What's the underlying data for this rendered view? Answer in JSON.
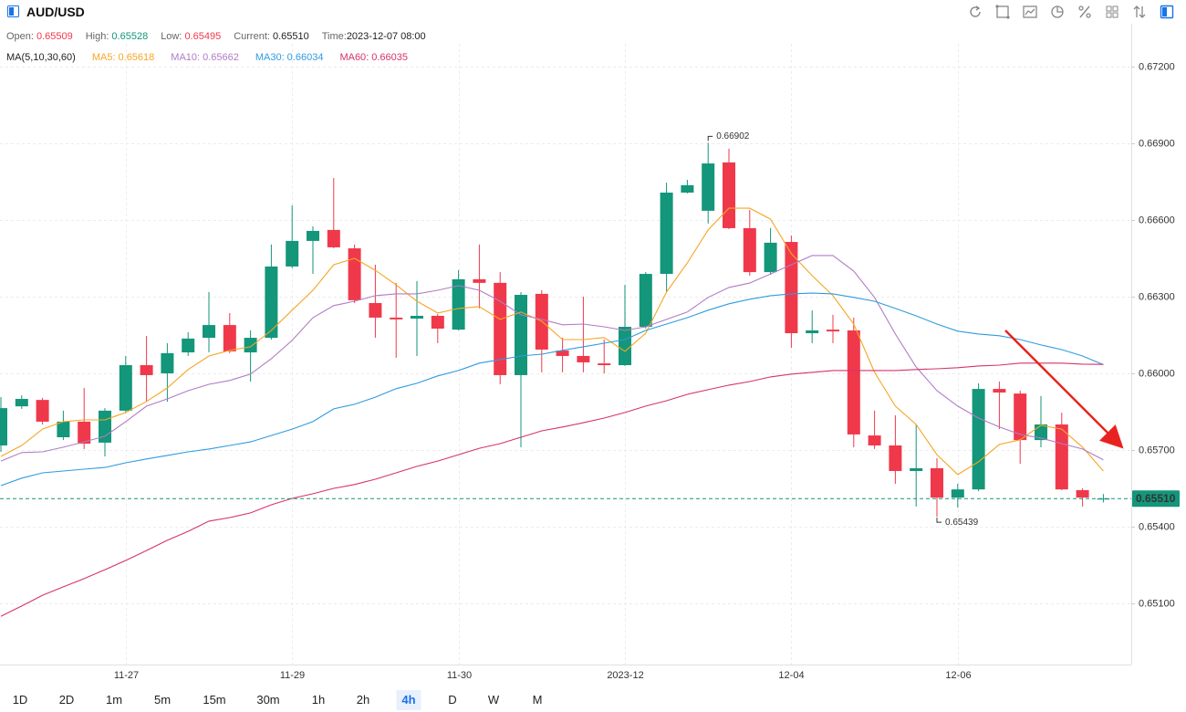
{
  "header": {
    "symbol": "AUD/USD"
  },
  "info": [
    "Open:",
    "High:",
    "Low:",
    "Current:",
    "Time:"
  ],
  "time": "2023-12-07 08:00",
  "indicator": "MA(5,10,30,60)",
  "timeframes": [
    "1D",
    "2D",
    "1m",
    "5m",
    "15m",
    "30m",
    "1h",
    "2h",
    "4h",
    "D",
    "W",
    "M"
  ],
  "active_timeframe": "4h",
  "chart_data": {
    "type": "candlestick",
    "categories": [
      null,
      null,
      null,
      null,
      null,
      null,
      "11-27",
      null,
      null,
      null,
      null,
      null,
      null,
      null,
      "11-29",
      null,
      null,
      null,
      null,
      null,
      null,
      null,
      "11-30",
      null,
      null,
      null,
      null,
      null,
      null,
      null,
      "2023-12",
      null,
      null,
      null,
      null,
      null,
      null,
      null,
      "12-04",
      null,
      null,
      null,
      null,
      null,
      null,
      null,
      "12-06",
      null,
      null,
      null,
      null,
      null,
      null,
      null
    ],
    "open": [
      0.65718,
      0.65871,
      0.65896,
      0.6575,
      0.65811,
      0.65729,
      0.65854,
      0.66032,
      0.66,
      0.66082,
      0.66139,
      0.66189,
      0.66082,
      0.66139,
      0.66418,
      0.66518,
      0.66561,
      0.66489,
      0.66275,
      0.66218,
      0.66214,
      0.66225,
      0.66171,
      0.66368,
      0.66354,
      0.65993,
      0.66311,
      0.66089,
      0.66068,
      0.66039,
      0.66032,
      0.66182,
      0.66389,
      0.66707,
      0.66636,
      0.66825,
      0.66568,
      0.66396,
      0.66514,
      0.66157,
      0.66171,
      0.66168,
      0.65757,
      0.65718,
      0.65618,
      0.65629,
      0.65514,
      0.65546,
      0.65939,
      0.65921,
      0.65739,
      0.658,
      0.65543,
      0.65509
    ],
    "high": [
      0.65907,
      0.65914,
      0.65904,
      0.65854,
      0.65943,
      0.65864,
      0.66068,
      0.66146,
      0.66118,
      0.66161,
      0.66318,
      0.66236,
      0.66168,
      0.66504,
      0.66657,
      0.66575,
      0.66764,
      0.66504,
      0.66425,
      0.66354,
      0.66361,
      0.66232,
      0.66404,
      0.66504,
      0.66396,
      0.66318,
      0.66325,
      0.66139,
      0.663,
      0.66132,
      0.66346,
      0.66396,
      0.66746,
      0.66757,
      0.66902,
      0.66879,
      0.66639,
      0.66568,
      0.66539,
      0.66246,
      0.66229,
      0.66218,
      0.65854,
      0.65836,
      0.658,
      0.65668,
      0.65568,
      0.65961,
      0.65968,
      0.65932,
      0.65911,
      0.65846,
      0.6555,
      0.65528
    ],
    "low": [
      0.65693,
      0.65861,
      0.658,
      0.65739,
      0.65704,
      0.65675,
      0.65846,
      0.65889,
      0.65889,
      0.66068,
      0.66082,
      0.66079,
      0.65968,
      0.66132,
      0.66411,
      0.66389,
      0.66489,
      0.66275,
      0.66139,
      0.66061,
      0.66068,
      0.66118,
      0.66168,
      0.66254,
      0.65957,
      0.65711,
      0.66004,
      0.66004,
      0.66004,
      0.66,
      0.66029,
      0.66175,
      0.66318,
      0.66704,
      0.66586,
      0.66564,
      0.66382,
      0.66386,
      0.661,
      0.66118,
      0.66118,
      0.65711,
      0.65704,
      0.65568,
      0.65479,
      0.65439,
      0.65475,
      0.65539,
      0.65782,
      0.65646,
      0.65711,
      0.65543,
      0.65479,
      0.65495
    ],
    "close": [
      0.65864,
      0.659,
      0.65811,
      0.65811,
      0.65725,
      0.65854,
      0.66032,
      0.65993,
      0.66079,
      0.66136,
      0.66189,
      0.66086,
      0.66139,
      0.66418,
      0.66518,
      0.66557,
      0.66493,
      0.66286,
      0.66218,
      0.66211,
      0.66225,
      0.66175,
      0.66368,
      0.66354,
      0.65993,
      0.66307,
      0.66093,
      0.66068,
      0.66043,
      0.66032,
      0.66182,
      0.66389,
      0.66707,
      0.66736,
      0.66821,
      0.66568,
      0.66396,
      0.66511,
      0.66157,
      0.66168,
      0.66164,
      0.65761,
      0.65718,
      0.65618,
      0.65629,
      0.65514,
      0.65546,
      0.65939,
      0.65925,
      0.65739,
      0.658,
      0.65546,
      0.65514,
      0.6551
    ],
    "current_label": "0.65510",
    "up_color": "#13967a",
    "down_color": "#f0384b",
    "series": [
      {
        "name": "MA5",
        "color": "#f5a623",
        "values": [
          0.65675,
          0.65718,
          0.65782,
          0.65811,
          0.65818,
          0.65818,
          0.65847,
          0.6589,
          0.65943,
          0.66015,
          0.66068,
          0.6609,
          0.66104,
          0.66168,
          0.66247,
          0.66325,
          0.66425,
          0.6645,
          0.66403,
          0.66346,
          0.66282,
          0.66236,
          0.66254,
          0.66261,
          0.66211,
          0.6624,
          0.66204,
          0.66132,
          0.66132,
          0.6614,
          0.66086,
          0.66157,
          0.66318,
          0.66432,
          0.66561,
          0.66646,
          0.66646,
          0.66603,
          0.66468,
          0.66382,
          0.66304,
          0.66193,
          0.66004,
          0.65872,
          0.658,
          0.65682,
          0.65604,
          0.65654,
          0.65722,
          0.6574,
          0.65797,
          0.65782,
          0.65711,
          0.65618
        ]
      },
      {
        "name": "MA10",
        "color": "#b07cc6",
        "values": [
          0.65657,
          0.6569,
          0.65693,
          0.65711,
          0.65732,
          0.65754,
          0.65811,
          0.65872,
          0.659,
          0.65932,
          0.65957,
          0.65972,
          0.65997,
          0.66057,
          0.66129,
          0.66218,
          0.66265,
          0.66282,
          0.66304,
          0.66311,
          0.66311,
          0.66325,
          0.66343,
          0.66325,
          0.66282,
          0.66229,
          0.66211,
          0.6619,
          0.66193,
          0.66182,
          0.66168,
          0.66182,
          0.66211,
          0.6624,
          0.66297,
          0.66336,
          0.66353,
          0.66389,
          0.66425,
          0.66461,
          0.66461,
          0.664,
          0.66297,
          0.66154,
          0.66025,
          0.65932,
          0.65872,
          0.65825,
          0.6579,
          0.65761,
          0.65747,
          0.65725,
          0.65704,
          0.65662
        ]
      },
      {
        "name": "MA30",
        "color": "#2f9be0",
        "values": [
          0.65561,
          0.6559,
          0.65611,
          0.65618,
          0.65625,
          0.65632,
          0.6565,
          0.65665,
          0.65679,
          0.65693,
          0.65704,
          0.65718,
          0.65732,
          0.65757,
          0.65782,
          0.65811,
          0.65861,
          0.65879,
          0.65907,
          0.6594,
          0.65961,
          0.6599,
          0.66011,
          0.6604,
          0.66054,
          0.66068,
          0.66075,
          0.6609,
          0.66104,
          0.66118,
          0.66132,
          0.66168,
          0.66193,
          0.66218,
          0.66247,
          0.66272,
          0.6629,
          0.66304,
          0.66311,
          0.66314,
          0.66311,
          0.66297,
          0.66282,
          0.66254,
          0.66225,
          0.66193,
          0.66165,
          0.66154,
          0.66147,
          0.66132,
          0.66111,
          0.66093,
          0.66068,
          0.66034
        ]
      },
      {
        "name": "MA60",
        "color": "#d6336c",
        "values": [
          0.6505,
          0.6509,
          0.65132,
          0.65165,
          0.65197,
          0.65232,
          0.65268,
          0.65307,
          0.65347,
          0.65382,
          0.65422,
          0.65436,
          0.65454,
          0.65486,
          0.65511,
          0.65529,
          0.6555,
          0.65565,
          0.65586,
          0.65611,
          0.65636,
          0.65657,
          0.65682,
          0.65707,
          0.65725,
          0.6575,
          0.65775,
          0.6579,
          0.65807,
          0.65825,
          0.65847,
          0.65872,
          0.65893,
          0.65918,
          0.65936,
          0.65954,
          0.65968,
          0.65986,
          0.65997,
          0.66004,
          0.66011,
          0.66011,
          0.66011,
          0.66011,
          0.66015,
          0.66018,
          0.66022,
          0.66029,
          0.66032,
          0.6604,
          0.6604,
          0.6604,
          0.66036,
          0.66035
        ]
      }
    ],
    "ylim": [
      0.64861,
      0.67289
    ],
    "yticks": [
      {
        "value": 0.651,
        "label": "0.65100"
      },
      {
        "value": 0.654,
        "label": "0.65400"
      },
      {
        "value": 0.657,
        "label": "0.65700"
      },
      {
        "value": 0.66,
        "label": "0.66000"
      },
      {
        "value": 0.663,
        "label": "0.66300"
      },
      {
        "value": 0.666,
        "label": "0.66600"
      },
      {
        "value": 0.669,
        "label": "0.66900"
      },
      {
        "value": 0.672,
        "label": "0.67200"
      }
    ],
    "grid": true
  }
}
